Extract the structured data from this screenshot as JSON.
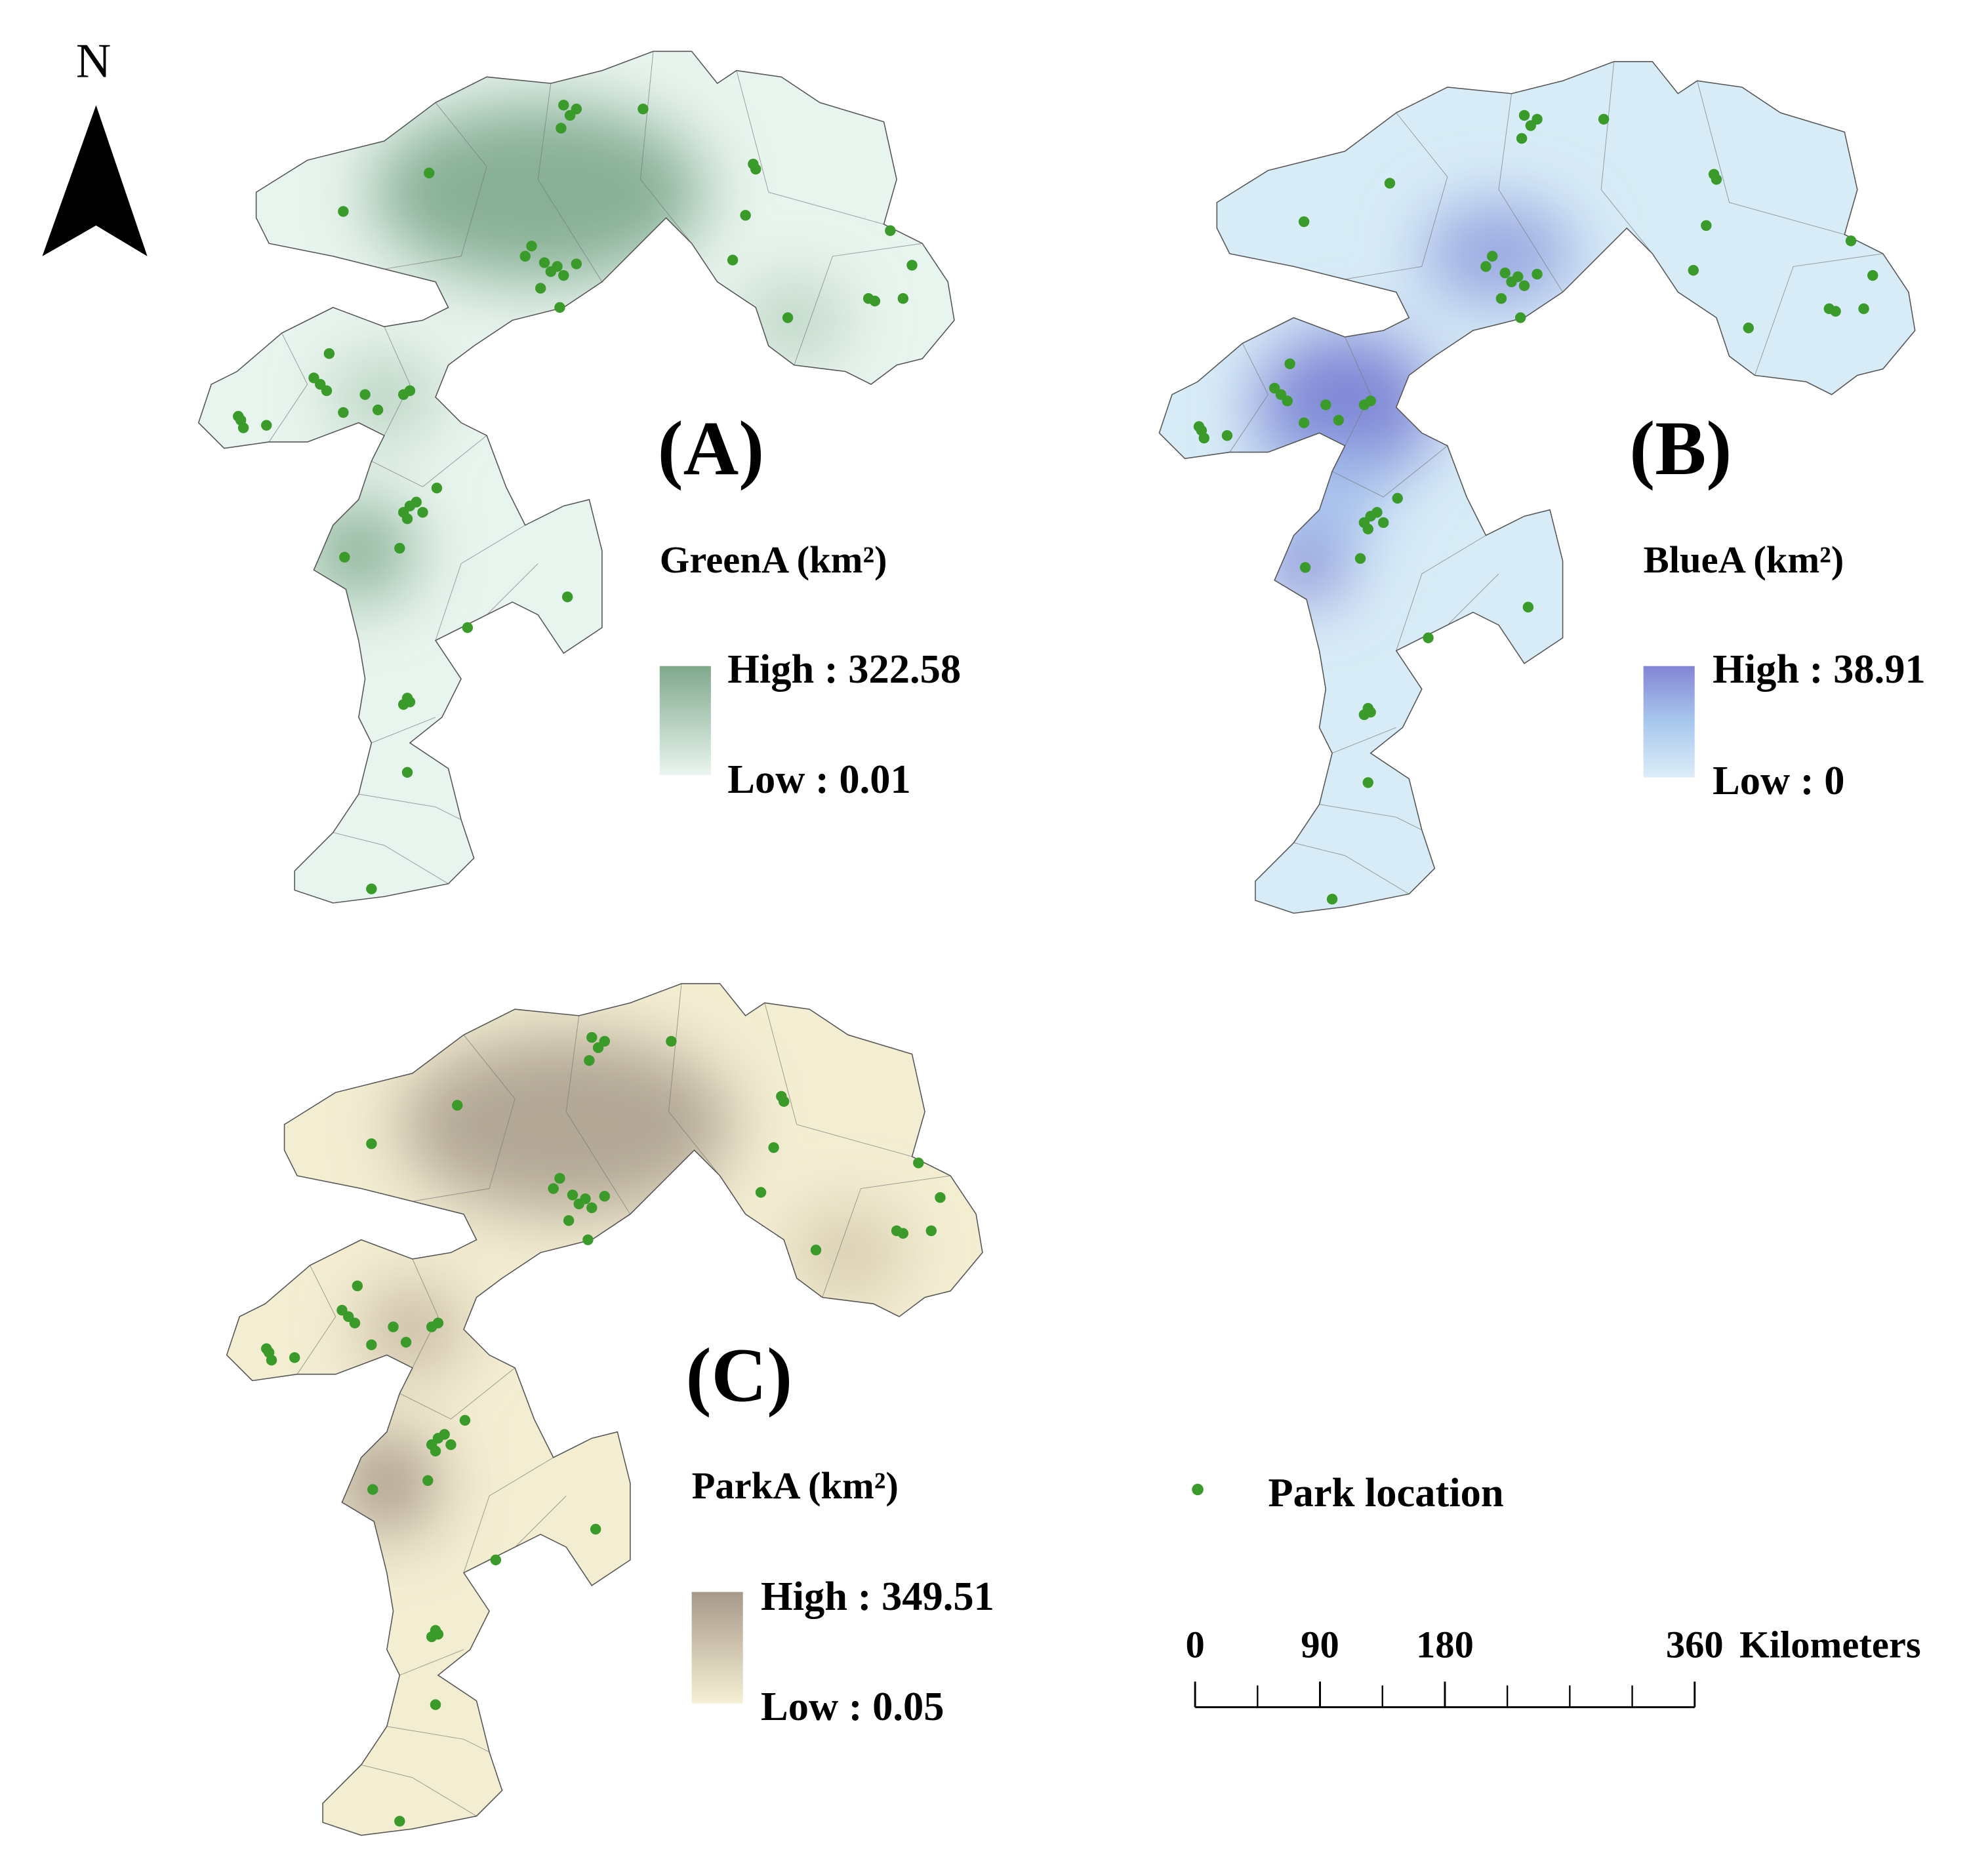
{
  "north_label": "N",
  "panels": [
    {
      "label": "(A)",
      "legend_title": "GreenA (km²)",
      "high": "High : 322.58",
      "low": "Low : 0.01"
    },
    {
      "label": "(B)",
      "legend_title": "BlueA (km²)",
      "high": "High : 38.91",
      "low": "Low : 0"
    },
    {
      "label": "(C)",
      "legend_title": "ParkA (km²)",
      "high": "High : 349.51",
      "low": "Low : 0.05"
    }
  ],
  "point_legend": "Park location",
  "scale_bar": {
    "ticks": [
      0,
      90,
      180,
      360
    ],
    "unit": "Kilometers"
  }
}
